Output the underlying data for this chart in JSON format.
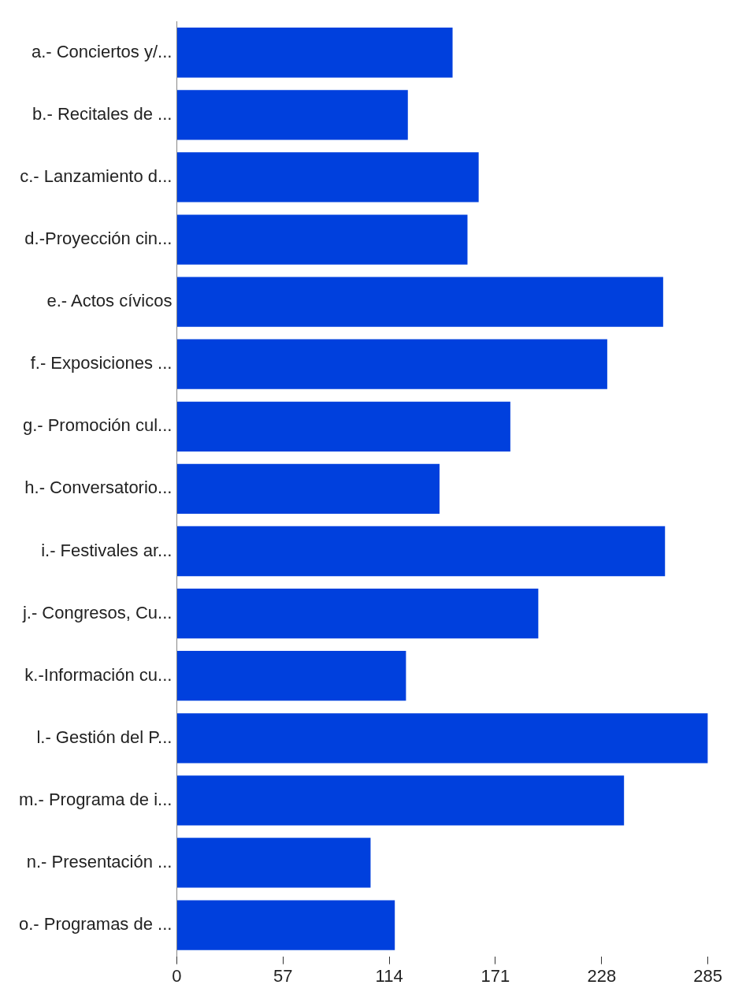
{
  "chart_data": {
    "type": "bar",
    "orientation": "horizontal",
    "categories": [
      "a.- Conciertos y/...",
      "b.- Recitales de ...",
      "c.- Lanzamiento d...",
      "d.-Proyección cin...",
      "e.- Actos cívicos",
      "f.- Exposiciones ...",
      "g.- Promoción cul...",
      "h.- Conversatorio...",
      "i.- Festivales ar...",
      "j.- Congresos, Cu...",
      "k.-Información cu...",
      "l.- Gestión del P...",
      "m.- Programa de i...",
      "n.- Presentación ...",
      "o.- Programas de ..."
    ],
    "values": [
      148,
      124,
      162,
      156,
      261,
      231,
      179,
      141,
      262,
      194,
      123,
      285,
      240,
      104,
      117
    ],
    "color": "#0040dd",
    "xlim": [
      0,
      285
    ],
    "xticks": [
      0,
      57,
      114,
      171,
      228,
      285
    ],
    "grid": false,
    "legend": false
  }
}
